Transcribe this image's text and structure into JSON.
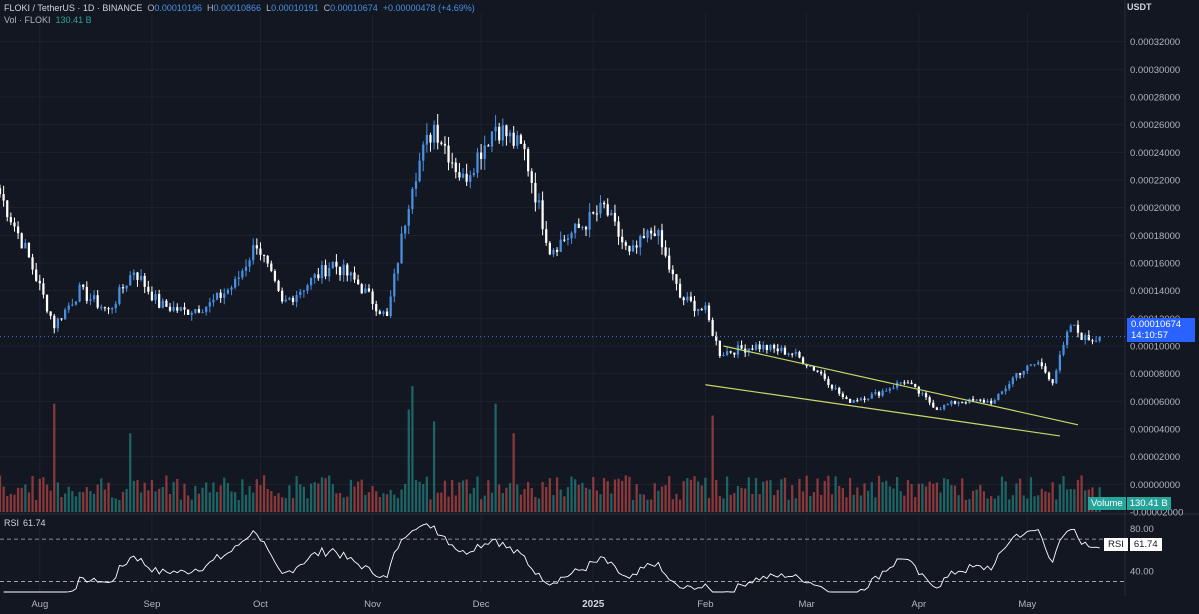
{
  "header": {
    "symbol": "FLOKI / TetherUS · 1D · BINANCE",
    "o_label": "O",
    "o_value": "0.00010196",
    "h_label": "H",
    "h_value": "0.00010866",
    "l_label": "L",
    "l_value": "0.00010191",
    "c_label": "C",
    "c_value": "0.00010674",
    "change": "+0.00000478 (+4.69%)",
    "volume_label": "Vol · FLOKI",
    "volume_value": "130.41 B"
  },
  "price_axis": {
    "unit": "USDT",
    "last_price": "0.00010674",
    "countdown": "14:10:57"
  },
  "volume_tag": {
    "label": "Volume",
    "value": "130.41 B"
  },
  "rsi": {
    "label": "RSI",
    "value": "61.74"
  },
  "colors": {
    "background": "#131722",
    "up": "#4a90e2",
    "down": "#ffffff",
    "volume_up": "#26a69a",
    "volume_down": "#ef5350",
    "trendline": "#c8d86a",
    "grid": "#1e222d",
    "rsi_line": "#ffffff"
  },
  "chart_data": [
    {
      "type": "candlestick",
      "title": "FLOKI / TetherUS · 1D · BINANCE",
      "x_tick_labels": [
        "Aug",
        "Sep",
        "Oct",
        "Nov",
        "Dec",
        "2025",
        "Feb",
        "Mar",
        "Apr",
        "May"
      ],
      "y_tick_labels": [
        "0.00032000",
        "0.00030000",
        "0.00028000",
        "0.00026000",
        "0.00024000",
        "0.00022000",
        "0.00020000",
        "0.00018000",
        "0.00016000",
        "0.00014000",
        "0.00012000",
        "0.00010000",
        "0.00008000",
        "0.00006000",
        "0.00004000",
        "0.00002000",
        "0.00000000",
        "-0.00002000"
      ],
      "ylim": [
        -2e-05,
        0.00034
      ],
      "price_anchors": [
        [
          "2024-07-21",
          0.00021
        ],
        [
          "2024-07-28",
          0.00017
        ],
        [
          "2024-08-05",
          0.000115
        ],
        [
          "2024-08-12",
          0.00014
        ],
        [
          "2024-08-20",
          0.000125
        ],
        [
          "2024-08-27",
          0.000155
        ],
        [
          "2024-09-03",
          0.00013
        ],
        [
          "2024-09-10",
          0.000125
        ],
        [
          "2024-09-17",
          0.00013
        ],
        [
          "2024-09-24",
          0.000145
        ],
        [
          "2024-09-30",
          0.000175
        ],
        [
          "2024-10-07",
          0.00013
        ],
        [
          "2024-10-14",
          0.000145
        ],
        [
          "2024-10-21",
          0.00016
        ],
        [
          "2024-10-28",
          0.000145
        ],
        [
          "2024-11-05",
          0.00012
        ],
        [
          "2024-11-12",
          0.00022
        ],
        [
          "2024-11-18",
          0.00026
        ],
        [
          "2024-11-26",
          0.00022
        ],
        [
          "2024-12-05",
          0.00026
        ],
        [
          "2024-12-13",
          0.00024
        ],
        [
          "2024-12-20",
          0.00017
        ],
        [
          "2024-12-28",
          0.000185
        ],
        [
          "2025-01-04",
          0.0002
        ],
        [
          "2025-01-11",
          0.000165
        ],
        [
          "2025-01-18",
          0.000185
        ],
        [
          "2025-01-25",
          0.000135
        ],
        [
          "2025-02-01",
          0.000125
        ],
        [
          "2025-02-05",
          9.5e-05
        ],
        [
          "2025-02-15",
          0.0001
        ],
        [
          "2025-02-25",
          9.5e-05
        ],
        [
          "2025-03-05",
          8e-05
        ],
        [
          "2025-03-12",
          6e-05
        ],
        [
          "2025-03-20",
          6.5e-05
        ],
        [
          "2025-03-28",
          7.5e-05
        ],
        [
          "2025-04-06",
          5.5e-05
        ],
        [
          "2025-04-12",
          6e-05
        ],
        [
          "2025-04-22",
          6e-05
        ],
        [
          "2025-04-28",
          8e-05
        ],
        [
          "2025-05-04",
          8.8e-05
        ],
        [
          "2025-05-08",
          7.5e-05
        ],
        [
          "2025-05-13",
          0.000115
        ],
        [
          "2025-05-17",
          0.000105
        ],
        [
          "2025-05-21",
          0.000106
        ]
      ],
      "last_close": 0.00010674,
      "trendlines": [
        {
          "from": [
            "2025-02-06",
            0.0001
          ],
          "to": [
            "2025-05-15",
            4.3e-05
          ]
        },
        {
          "from": [
            "2025-02-01",
            7.2e-05
          ],
          "to": [
            "2025-05-10",
            3.5e-05
          ]
        }
      ]
    },
    {
      "type": "bar",
      "title": "Volume",
      "series": [
        {
          "name": "Vol · FLOKI"
        }
      ],
      "last_value": "130.41 B"
    },
    {
      "type": "line",
      "title": "RSI",
      "y_tick_labels": [
        "80.00",
        "40.00"
      ],
      "ylim": [
        20,
        90
      ],
      "bands": [
        70,
        30
      ],
      "last_value": 61.74
    }
  ]
}
